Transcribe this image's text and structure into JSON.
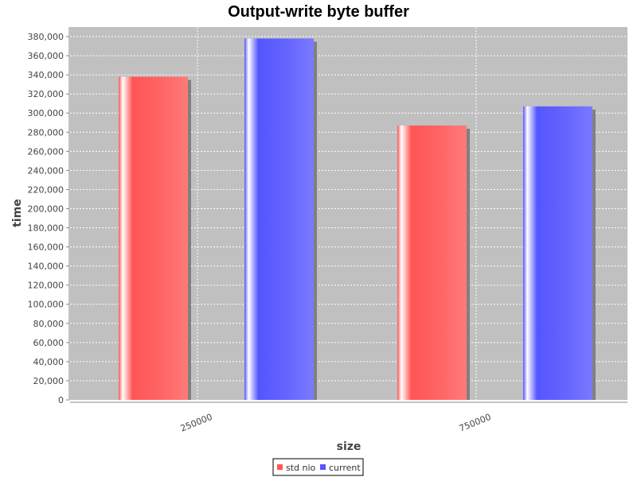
{
  "chart_data": {
    "type": "bar",
    "title": "Output-write byte buffer",
    "xlabel": "size",
    "ylabel": "time",
    "categories": [
      "250000",
      "750000"
    ],
    "series": [
      {
        "name": "std nio",
        "values": [
          338000,
          287000
        ]
      },
      {
        "name": "current",
        "values": [
          378000,
          307000
        ]
      }
    ],
    "ylim": [
      0,
      390000
    ],
    "yticks": [
      0,
      20000,
      40000,
      60000,
      80000,
      100000,
      120000,
      140000,
      160000,
      180000,
      200000,
      220000,
      240000,
      260000,
      280000,
      300000,
      320000,
      340000,
      360000,
      380000
    ],
    "grid": true,
    "legend_position": "bottom-center",
    "colors": {
      "plot_background": "#c0c0c0",
      "std nio": "#ff5555",
      "current": "#5555ff",
      "shadow": "#808080",
      "grid": "#ffffff"
    }
  }
}
